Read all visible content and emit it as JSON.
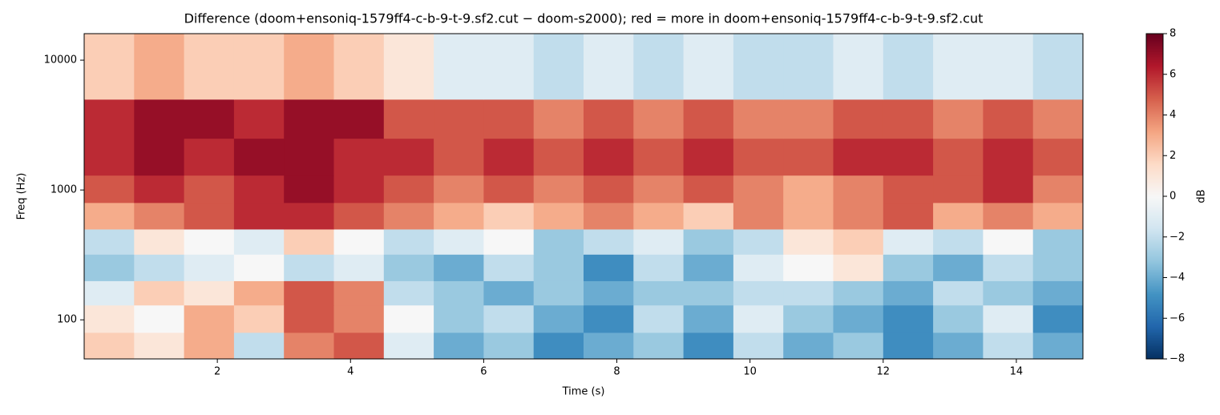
{
  "chart_data": {
    "type": "heatmap",
    "title": "Difference (doom+ensoniq-1579ff4-c-b-9-t-9.sf2.cut − doom-s2000); red = more in doom+ensoniq-1579ff4-c-b-9-t-9.sf2.cut",
    "x_label": "Time (s)",
    "y_label": "Freq (Hz)",
    "colorbar_label": "dB",
    "y_scale": "log",
    "xlim": [
      0,
      15
    ],
    "ylim": [
      50,
      16000
    ],
    "xticks": [
      2,
      4,
      6,
      8,
      10,
      12,
      14
    ],
    "yticks": [
      100,
      1000,
      10000
    ],
    "x_bins": [
      0,
      0.75,
      1.5,
      2.25,
      3,
      3.75,
      4.5,
      5.25,
      6,
      6.75,
      7.5,
      8.25,
      9,
      9.75,
      10.5,
      11.25,
      12,
      12.75,
      13.5,
      14.25,
      15
    ],
    "y_bins": [
      50,
      80,
      130,
      200,
      320,
      500,
      800,
      1300,
      2500,
      5000,
      16000
    ],
    "z": [
      [
        2,
        1,
        3,
        -2,
        4,
        5,
        -1,
        -4,
        -3,
        -5,
        -4,
        -3,
        -5,
        -2,
        -4,
        -3,
        -5,
        -4,
        -2,
        -4
      ],
      [
        1,
        0,
        3,
        2,
        5,
        4,
        0,
        -3,
        -2,
        -4,
        -5,
        -2,
        -4,
        -1,
        -3,
        -4,
        -5,
        -3,
        -1,
        -5
      ],
      [
        -1,
        2,
        1,
        3,
        5,
        4,
        -2,
        -3,
        -4,
        -3,
        -4,
        -3,
        -3,
        -2,
        -2,
        -3,
        -4,
        -2,
        -3,
        -4
      ],
      [
        -3,
        -2,
        -1,
        0,
        -2,
        -1,
        -3,
        -4,
        -2,
        -3,
        -5,
        -2,
        -4,
        -1,
        0,
        1,
        -3,
        -4,
        -2,
        -3
      ],
      [
        -2,
        1,
        0,
        -1,
        2,
        0,
        -2,
        -1,
        0,
        -3,
        -2,
        -1,
        -3,
        -2,
        1,
        2,
        -1,
        -2,
        0,
        -3
      ],
      [
        3,
        4,
        5,
        6,
        6,
        5,
        4,
        3,
        2,
        3,
        4,
        3,
        2,
        4,
        3,
        4,
        5,
        3,
        4,
        3
      ],
      [
        5,
        6,
        5,
        6,
        7,
        6,
        5,
        4,
        5,
        4,
        5,
        4,
        5,
        4,
        3,
        4,
        5,
        5,
        6,
        4
      ],
      [
        6,
        7,
        6,
        7,
        7,
        6,
        6,
        5,
        6,
        5,
        6,
        5,
        6,
        5,
        5,
        6,
        6,
        5,
        6,
        5
      ],
      [
        6,
        7,
        7,
        6,
        7,
        7,
        5,
        5,
        5,
        4,
        5,
        4,
        5,
        4,
        4,
        5,
        5,
        4,
        5,
        4
      ],
      [
        2,
        3,
        2,
        2,
        3,
        2,
        1,
        -1,
        -1,
        -2,
        -1,
        -2,
        -1,
        -2,
        -2,
        -1,
        -2,
        -1,
        -1,
        -2
      ]
    ],
    "clim": [
      -8,
      8
    ],
    "cticks": [
      {
        "value": -8,
        "label": "−8"
      },
      {
        "value": -6,
        "label": "−6"
      },
      {
        "value": -4,
        "label": "−4"
      },
      {
        "value": -2,
        "label": "−2"
      },
      0,
      2,
      4,
      6,
      8
    ],
    "colormap": [
      "#053061",
      "#2166ac",
      "#4393c3",
      "#92c5de",
      "#d1e5f0",
      "#f7f7f7",
      "#fddbc7",
      "#f4a582",
      "#d6604d",
      "#b2182b",
      "#67001f"
    ]
  }
}
